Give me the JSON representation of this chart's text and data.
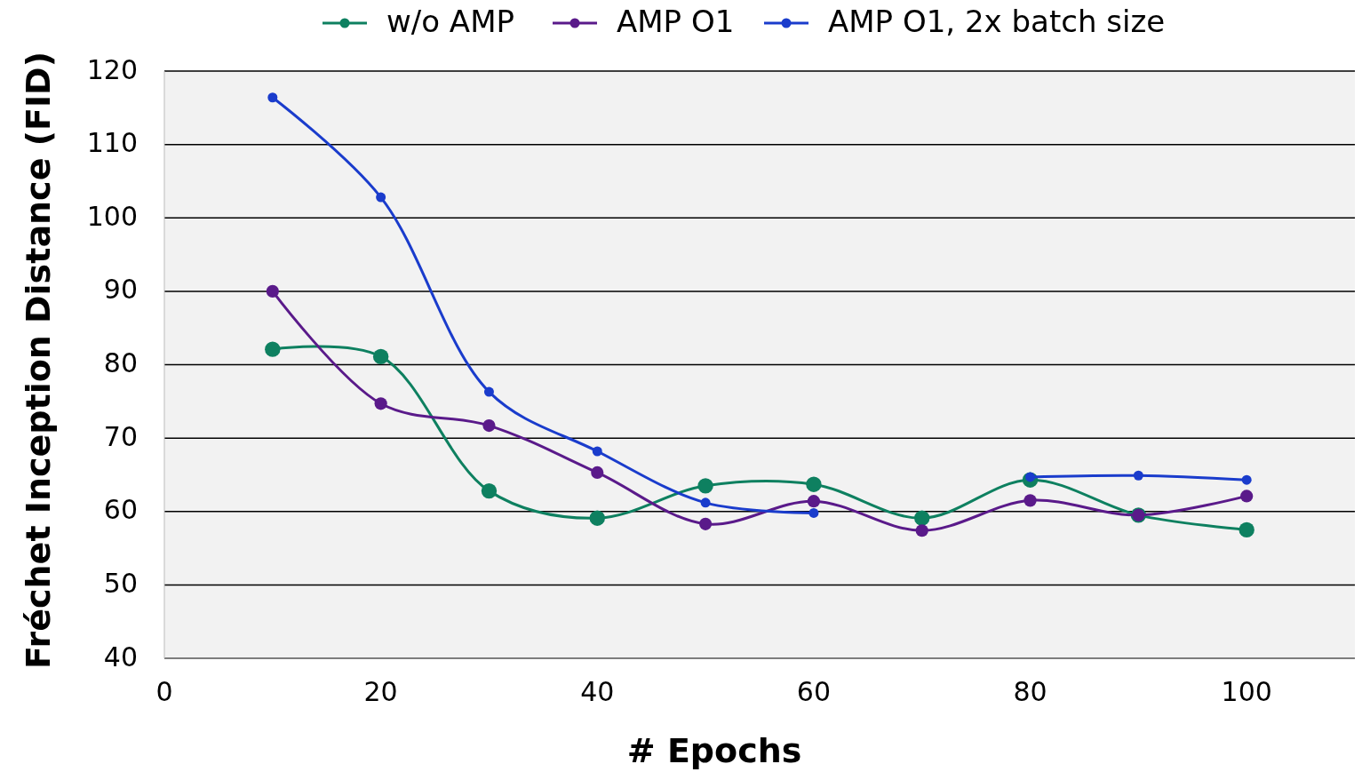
{
  "chart_data": {
    "type": "line",
    "xlabel": "# Epochs",
    "ylabel": "Fréchet Inception Distance (FID)",
    "x": [
      10,
      20,
      30,
      40,
      50,
      60,
      70,
      80,
      90,
      100
    ],
    "xlim": [
      0,
      110
    ],
    "xticks": [
      0,
      20,
      40,
      60,
      80,
      100
    ],
    "ylim": [
      40,
      120
    ],
    "yticks": [
      40,
      50,
      60,
      70,
      80,
      90,
      100,
      110,
      120
    ],
    "grid": "y",
    "legend": "top",
    "marker": "circle",
    "line_style": "solid",
    "series": [
      {
        "name": "w/o AMP",
        "color": "#0e8060",
        "values": [
          82.1,
          81.1,
          62.8,
          59.1,
          63.5,
          63.7,
          59.1,
          64.3,
          59.5,
          57.5
        ]
      },
      {
        "name": "AMP O1",
        "color": "#5a1a8a",
        "values": [
          90,
          74.7,
          71.7,
          65.3,
          58.3,
          61.4,
          57.4,
          61.5,
          59.5,
          62.1
        ]
      },
      {
        "name": "AMP O1, 2x batch size",
        "color": "#1a3ccc",
        "values": [
          116.4,
          102.8,
          76.3,
          68.2,
          61.2,
          59.8,
          null,
          64.7,
          64.9,
          64.3
        ]
      }
    ]
  }
}
